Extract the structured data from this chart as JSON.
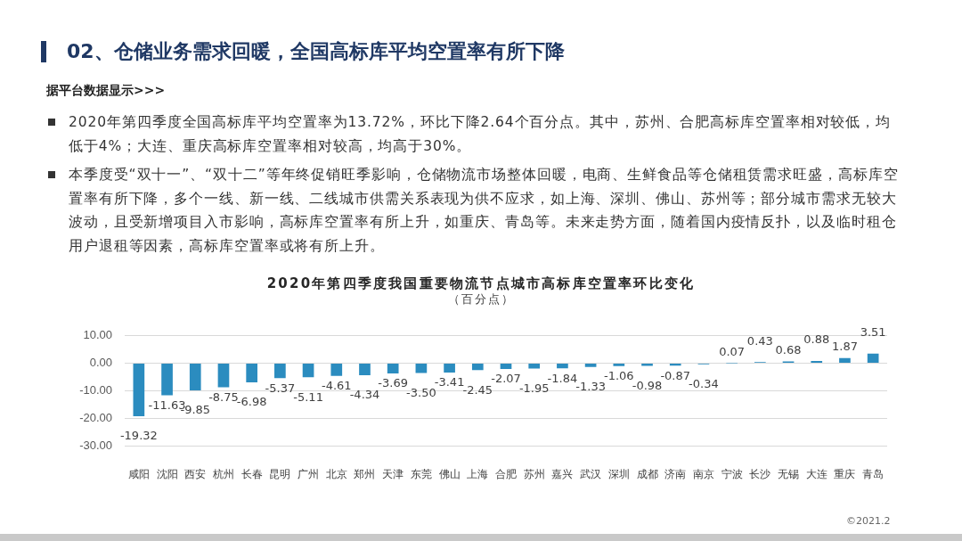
{
  "chart_data": {
    "type": "bar",
    "title": "2020年第四季度我国重要物流节点城市高标库空置率环比变化",
    "subtitle": "（百分点）",
    "categories": [
      "咸阳",
      "沈阳",
      "西安",
      "杭州",
      "长春",
      "昆明",
      "广州",
      "北京",
      "郑州",
      "天津",
      "东莞",
      "佛山",
      "上海",
      "合肥",
      "苏州",
      "嘉兴",
      "武汉",
      "深圳",
      "成都",
      "济南",
      "南京",
      "宁波",
      "长沙",
      "无锡",
      "大连",
      "重庆",
      "青岛"
    ],
    "values": [
      -19.32,
      -11.63,
      -9.85,
      -8.75,
      -6.98,
      -5.37,
      -5.11,
      -4.61,
      -4.34,
      -3.69,
      -3.5,
      -3.41,
      -2.45,
      -2.07,
      -1.95,
      -1.84,
      -1.33,
      -1.06,
      -0.98,
      -0.87,
      -0.34,
      0.07,
      0.43,
      0.68,
      0.88,
      1.87,
      3.51
    ],
    "value_labels": [
      "-19.32",
      "-11.63",
      "-9.85",
      "-8.75",
      "-6.98",
      "-5.37",
      "-5.11",
      "-4.61",
      "-4.34",
      "-3.69",
      "-3.50",
      "-3.41",
      "-2.45",
      "-2.07",
      "-1.95",
      "-1.84",
      "-1.33",
      "-1.06",
      "-0.98",
      "-0.87",
      "-0.34",
      "0.07",
      "0.43",
      "0.68",
      "0.88",
      "1.87",
      "3.51"
    ],
    "color": "#2b8cbf",
    "ylim": [
      -30,
      10
    ],
    "yticks": [
      {
        "value": -30,
        "label": "-30.00"
      },
      {
        "value": -20,
        "label": "-20.00"
      },
      {
        "value": -10,
        "label": "-10.00"
      },
      {
        "value": 0,
        "label": "0.00"
      },
      {
        "value": 10,
        "label": "10.00"
      }
    ],
    "grid": "y",
    "annotations": [
      "02、仓储业务需求回暖，全国高标库平均空置率有所下降",
      "据平台数据显示>>>",
      "2020年第四季度全国高标库平均空置率为13.72%，环比下降2.64个百分点。其中，苏州、合肥高标库空置率相对较低，均低于4%；大连、重庆高标库空置率相对较高，均高于30%。",
      "本季度受“双十一”、“双十二”等年终促销旺季影响，仓储物流市场整体回暖，电商、生鲜食品等仓储租赁需求旺盛，高标库空置率有所下降，多个一线、新一线、二线城市供需关系表现为供不应求，如上海、深圳、佛山、苏州等；部分城市需求无较大波动，且受新增项目入市影响，高标库空置率有所上升，如重庆、青岛等。未来走势方面，随着国内疫情反扑，以及临时租仓用户退租等因素，高标库空置率或将有所上升。",
      "©2021.2"
    ]
  }
}
